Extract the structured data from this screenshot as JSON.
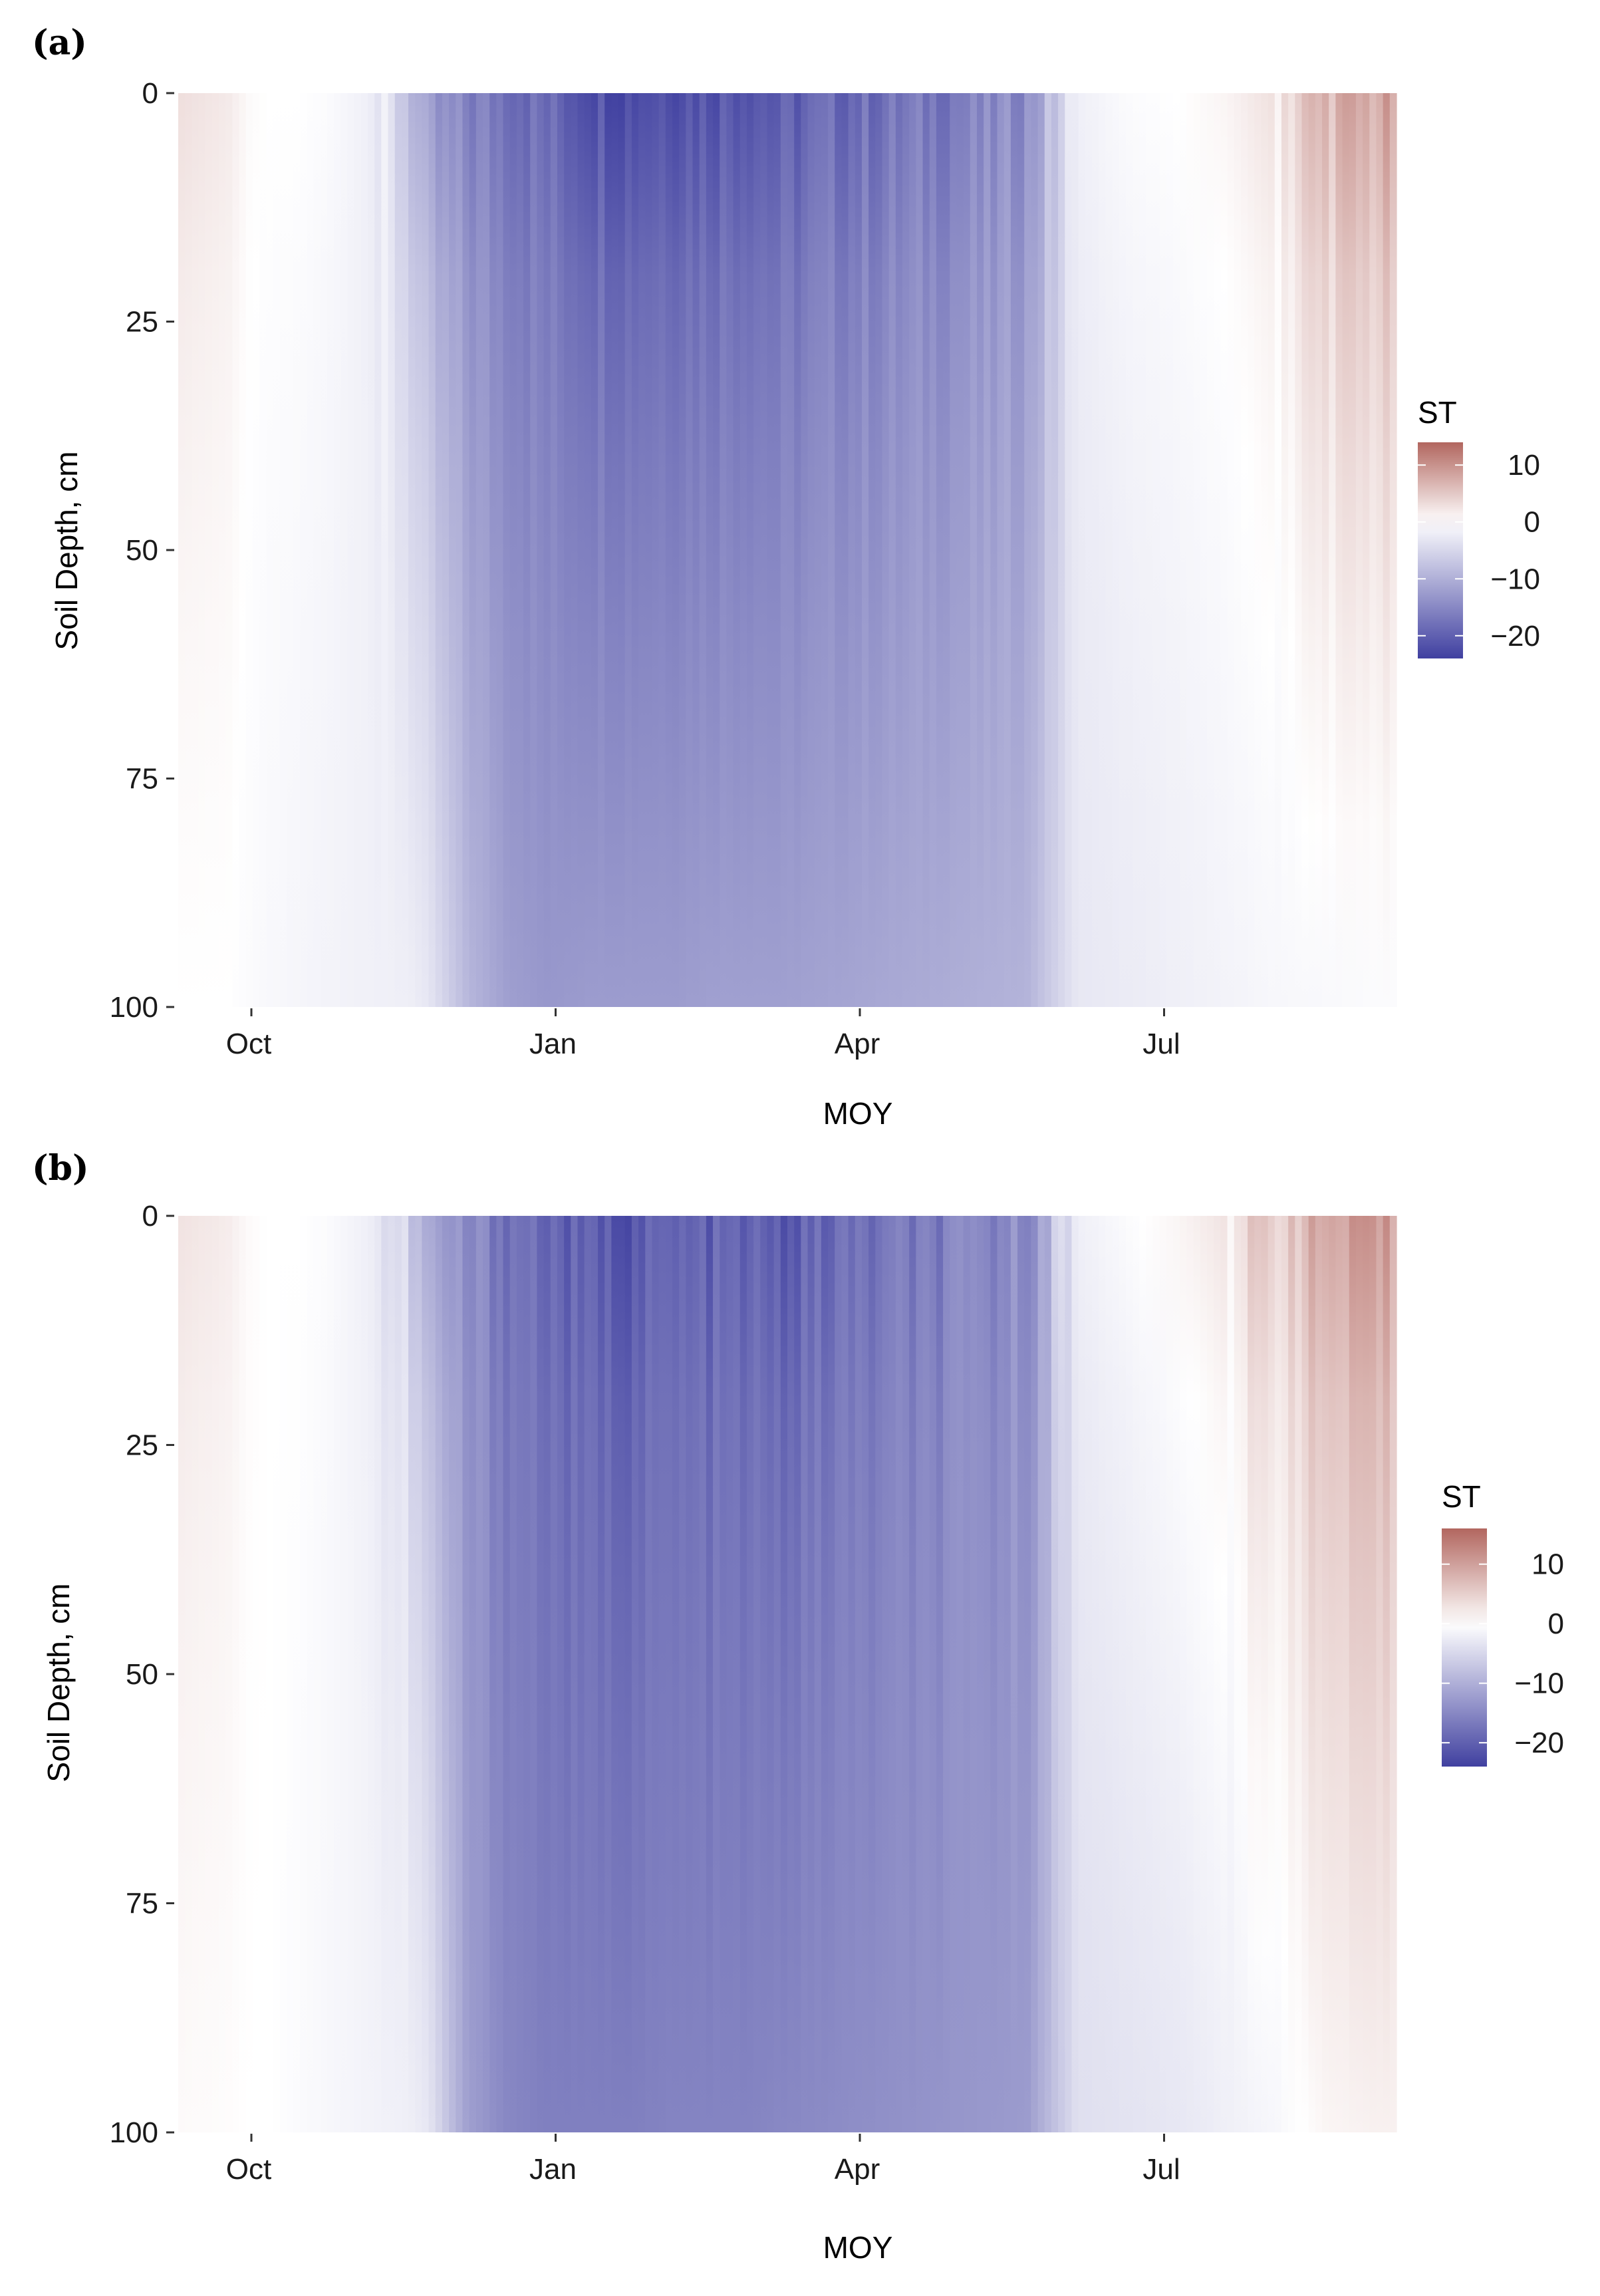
{
  "chart_data": [
    {
      "type": "heatmap",
      "panel_label": "(a)",
      "xlabel": "MOY",
      "ylabel": "Soil Depth, cm",
      "x_ticks": [
        "Oct",
        "Jan",
        "Apr",
        "Jul"
      ],
      "y_ticks": [
        "0",
        "25",
        "50",
        "75",
        "100"
      ],
      "ylim": [
        0,
        100
      ],
      "y_reversed": true,
      "legend": {
        "title": "ST",
        "placement": "right",
        "range": [
          -24,
          14
        ],
        "ticks": [
          10,
          0,
          -10,
          -20
        ],
        "tick_labels": [
          "10",
          "0",
          "−10",
          "−20"
        ],
        "color_low": "#4040a0",
        "color_mid": "#ffffff",
        "color_high": "#b2665f"
      },
      "profile": {
        "months": [
          -0.5,
          0,
          0.2,
          0.4,
          0.7,
          1.0,
          1.4,
          1.8,
          2.0,
          2.4,
          2.8,
          3.2,
          3.6,
          4.0,
          4.4,
          4.8,
          5.2,
          5.5,
          6.0,
          6.5,
          7.0,
          7.5,
          8.0,
          8.5,
          9.0,
          9.5,
          10.0,
          10.5,
          11.0,
          11.5,
          11.7
        ],
        "surface_temp": [
          3,
          2,
          0.5,
          0,
          0,
          -0.5,
          -2,
          -7,
          -14,
          -16,
          -17,
          -19,
          -21,
          -22,
          -21,
          -21,
          -20,
          -21,
          -19,
          -18,
          -17,
          -16,
          -14,
          -2,
          -0.5,
          0,
          1,
          3,
          7,
          8,
          8
        ],
        "deep_temp": [
          0,
          0,
          -0.5,
          -0.8,
          -1.2,
          -1.5,
          -1.8,
          -2,
          -3,
          -9,
          -12,
          -13,
          -12.5,
          -12.5,
          -12.5,
          -12,
          -12,
          -12,
          -11.5,
          -11,
          -10.5,
          -10,
          -9.5,
          -3,
          -2.5,
          -2,
          -1.5,
          -1,
          -0.8,
          -0.5,
          -0.5
        ]
      }
    },
    {
      "type": "heatmap",
      "panel_label": "(b)",
      "xlabel": "MOY",
      "ylabel": "Soil Depth, cm",
      "x_ticks": [
        "Oct",
        "Jan",
        "Apr",
        "Jul"
      ],
      "y_ticks": [
        "0",
        "25",
        "50",
        "75",
        "100"
      ],
      "ylim": [
        0,
        100
      ],
      "y_reversed": true,
      "legend": {
        "title": "ST",
        "placement": "right",
        "range": [
          -24,
          16
        ],
        "ticks": [
          10,
          0,
          -10,
          -20
        ],
        "tick_labels": [
          "10",
          "0",
          "−10",
          "−20"
        ],
        "color_low": "#4040a0",
        "color_mid": "#ffffff",
        "color_high": "#b2665f"
      },
      "profile": {
        "months": [
          -0.5,
          0,
          0.2,
          0.4,
          0.7,
          1.0,
          1.4,
          1.8,
          2.0,
          2.4,
          2.8,
          3.2,
          3.6,
          4.0,
          4.4,
          4.8,
          5.2,
          5.5,
          6.0,
          6.5,
          7.0,
          7.5,
          8.0,
          8.5,
          9.0,
          9.5,
          10.0,
          10.5,
          11.0,
          11.5,
          11.7
        ],
        "surface_temp": [
          3,
          2,
          0.5,
          0,
          0,
          -0.5,
          -2,
          -6,
          -12,
          -15,
          -17,
          -19,
          -21,
          -21,
          -20,
          -20,
          -20,
          -21,
          -19,
          -18,
          -17,
          -16,
          -14,
          -2,
          -0.5,
          1,
          3,
          6,
          9,
          10,
          10
        ],
        "deep_temp": [
          0.5,
          0.3,
          0,
          0,
          -0.5,
          -1,
          -1.5,
          -2,
          -3,
          -12,
          -15,
          -16,
          -16,
          -16,
          -15.5,
          -15.5,
          -15.5,
          -15,
          -14.5,
          -14,
          -13.5,
          -13,
          -12.5,
          -4,
          -3.5,
          -3,
          -2,
          -1,
          1,
          1.5,
          1.5
        ]
      }
    }
  ]
}
